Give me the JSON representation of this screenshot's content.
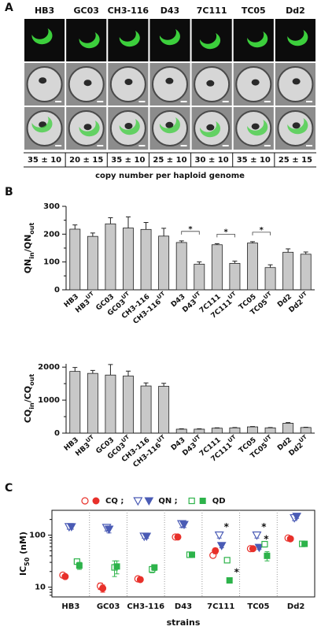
{
  "panel_a": {
    "letter": "A",
    "strains": [
      "HB3",
      "GC03",
      "CH3-116",
      "D43",
      "7C111",
      "TC05",
      "Dd2"
    ],
    "copy_numbers": [
      "35 ± 10",
      "20 ± 15",
      "35 ± 10",
      "25 ± 10",
      "30 ± 10",
      "35 ± 10",
      "25 ± 15"
    ],
    "caption": "copy number per haploid genome"
  },
  "chart_data": [
    {
      "type": "bar",
      "panel": "B",
      "ylabel": [
        {
          "main": "QN",
          "sub": "in"
        },
        {
          "main": "/QN",
          "sub": "out"
        }
      ],
      "categories": [
        {
          "base": "HB3"
        },
        {
          "base": "HB3",
          "sup": "UT"
        },
        {
          "base": "GC03"
        },
        {
          "base": "GC03",
          "sup": "UT"
        },
        {
          "base": "CH3-116"
        },
        {
          "base": "CH3-116",
          "sup": "UT"
        },
        {
          "base": "D43"
        },
        {
          "base": "D43",
          "sup": "UT"
        },
        {
          "base": "7C111"
        },
        {
          "base": "7C111",
          "sup": "UT"
        },
        {
          "base": "TC05"
        },
        {
          "base": "TC05",
          "sup": "UT"
        },
        {
          "base": "Dd2"
        },
        {
          "base": "Dd2",
          "sup": "UT"
        }
      ],
      "values": [
        218,
        192,
        237,
        222,
        217,
        193,
        170,
        92,
        162,
        95,
        168,
        80,
        135,
        128
      ],
      "errors": [
        15,
        12,
        22,
        40,
        25,
        28,
        6,
        8,
        4,
        8,
        5,
        10,
        12,
        8
      ],
      "color": "#c8c8c8",
      "ylim": [
        0,
        300
      ],
      "yticks": [
        0,
        100,
        200,
        300
      ],
      "minor_yticks": [
        50,
        150,
        250
      ],
      "significance": [
        {
          "text": "*",
          "from": 6,
          "to": 7
        },
        {
          "text": "*",
          "from": 8,
          "to": 9
        },
        {
          "text": "*",
          "from": 10,
          "to": 11
        }
      ]
    },
    {
      "type": "bar",
      "ylabel": [
        {
          "main": "CQ",
          "sub": "in"
        },
        {
          "main": "/CQ",
          "sub": "out"
        }
      ],
      "categories": [
        {
          "base": "HB3"
        },
        {
          "base": "HB3",
          "sup": "UT"
        },
        {
          "base": "GC03"
        },
        {
          "base": "GC03",
          "sup": "UT"
        },
        {
          "base": "CH3-116"
        },
        {
          "base": "CH3-116",
          "sup": "UT"
        },
        {
          "base": "D43"
        },
        {
          "base": "D43",
          "sup": "UT"
        },
        {
          "base": "7C111"
        },
        {
          "base": "7C111",
          "sup": "UT"
        },
        {
          "base": "TC05"
        },
        {
          "base": "TC05",
          "sup": "UT"
        },
        {
          "base": "Dd2"
        },
        {
          "base": "Dd2",
          "sup": "UT"
        }
      ],
      "values": [
        1870,
        1810,
        1760,
        1730,
        1430,
        1420,
        120,
        120,
        150,
        160,
        190,
        160,
        300,
        170
      ],
      "errors": [
        120,
        90,
        320,
        150,
        90,
        90,
        10,
        10,
        10,
        10,
        10,
        10,
        20,
        10
      ],
      "color": "#c8c8c8",
      "ylim": [
        0,
        2100
      ],
      "yticks": [
        0,
        1000,
        2000
      ],
      "minor_yticks": [
        500,
        1500
      ]
    },
    {
      "type": "dot",
      "panel": "C",
      "ylabel": [
        {
          "main": "IC",
          "sub": "50"
        },
        {
          "main": " (nM)"
        }
      ],
      "xlabel": "strains",
      "categories": [
        "HB3",
        "GC03",
        "CH3-116",
        "D43",
        "7C111",
        "TC05",
        "Dd2"
      ],
      "log_y": true,
      "separators": true,
      "ylim": [
        6.5,
        300
      ],
      "yticks": [
        10,
        100
      ],
      "minor_yticks": [
        7,
        8,
        9,
        20,
        30,
        40,
        50,
        60,
        70,
        80,
        90,
        200
      ],
      "legend": [
        {
          "label": "CQ ;",
          "series": [
            0,
            1
          ]
        },
        {
          "label": "QN ;",
          "series": [
            2,
            3
          ]
        },
        {
          "label": "QD",
          "series": [
            4,
            5
          ]
        }
      ],
      "series": [
        {
          "color": "#e8302a",
          "marker": "circle",
          "filled": false,
          "values": [
            17,
            10.5,
            14.5,
            92,
            41,
            55,
            88
          ],
          "errors": [
            1.5,
            1.5,
            1,
            5,
            4,
            4,
            4
          ]
        },
        {
          "color": "#e8302a",
          "marker": "circle",
          "filled": true,
          "values": [
            16,
            9.5,
            14,
            92,
            50,
            55,
            85
          ],
          "errors": [
            1.5,
            1.5,
            1,
            5,
            6,
            4,
            5
          ]
        },
        {
          "color": "#4a5bb5",
          "marker": "triangle",
          "filled": false,
          "values": [
            145,
            140,
            95,
            165,
            100,
            100,
            215
          ],
          "errors": [
            15,
            20,
            8,
            25,
            12,
            12,
            25
          ]
        },
        {
          "color": "#4a5bb5",
          "marker": "triangle",
          "filled": true,
          "values": [
            145,
            130,
            95,
            160,
            63,
            58,
            230
          ],
          "errors": [
            15,
            20,
            8,
            20,
            6,
            5,
            20
          ]
        },
        {
          "color": "#2db34a",
          "marker": "square",
          "filled": false,
          "values": [
            31,
            24,
            22,
            42,
            33,
            67,
            68
          ],
          "errors": [
            3,
            8,
            3,
            4,
            3,
            8,
            6
          ]
        },
        {
          "color": "#2db34a",
          "marker": "square",
          "filled": true,
          "values": [
            26,
            25,
            24,
            42,
            13.5,
            40,
            68
          ],
          "errors": [
            4,
            7,
            3,
            4,
            1.5,
            8,
            6
          ]
        }
      ],
      "annotations": [
        {
          "text": "*",
          "category": 4,
          "series": 2
        },
        {
          "text": "*",
          "category": 4,
          "series": 5
        },
        {
          "text": "*",
          "category": 5,
          "series": 2
        },
        {
          "text": "*",
          "category": 5,
          "series": 3
        }
      ]
    }
  ]
}
